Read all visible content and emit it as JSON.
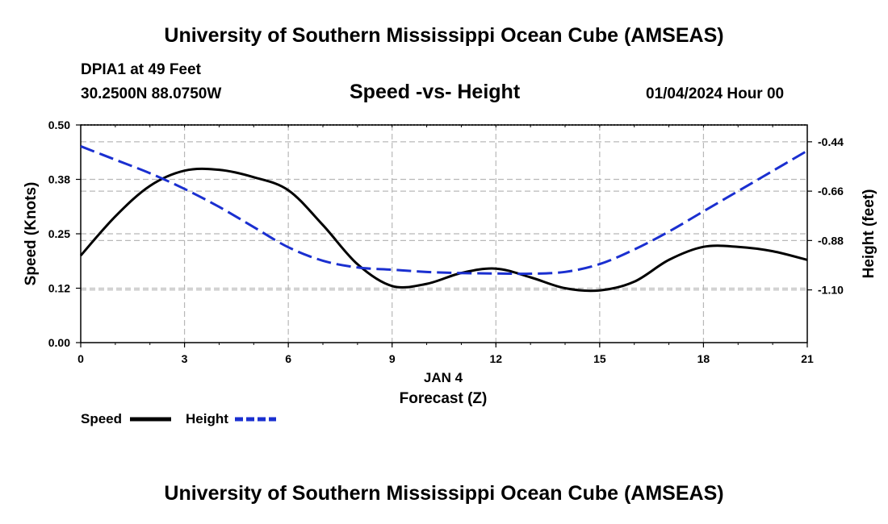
{
  "header": {
    "title": "University of Southern Mississippi Ocean Cube (AMSEAS)",
    "station": "DPIA1 at 49 Feet",
    "coords": "30.2500N  88.0750W",
    "datetime": "01/04/2024 Hour 00",
    "footer_title": "University of Southern Mississippi Ocean Cube (AMSEAS)"
  },
  "chart_data": {
    "type": "line",
    "title": "Speed -vs- Height",
    "xlabel": "Forecast (Z)",
    "xlabel_date": "JAN 4",
    "ylabel": "Speed (Knots)",
    "y2label": "Height (feet)",
    "xlim": [
      0,
      21
    ],
    "ylim": [
      0,
      0.5
    ],
    "y2lim": [
      -1.335,
      -0.365
    ],
    "x_ticks": [
      0,
      3,
      6,
      9,
      12,
      15,
      18,
      21
    ],
    "x_tick_labels": [
      "0",
      "3",
      "6",
      "9",
      "12",
      "15",
      "18",
      "21"
    ],
    "y_ticks": [
      0,
      0.125,
      0.25,
      0.375,
      0.5
    ],
    "y_tick_labels": [
      "0.00",
      "0.12",
      "0.25",
      "0.38",
      "0.50"
    ],
    "y2_ticks": [
      -1.1,
      -0.88,
      -0.66,
      -0.44
    ],
    "y2_tick_labels": [
      "-1.10",
      "-0.88",
      "-0.66",
      "-0.44"
    ],
    "grid": true,
    "legend_placement": "bottom-left",
    "series": [
      {
        "name": "Speed",
        "axis": "left",
        "color": "#000000",
        "style": "solid",
        "x": [
          0,
          1,
          2,
          3,
          4,
          5,
          6,
          7,
          8,
          9,
          10,
          11,
          12,
          13,
          14,
          15,
          16,
          17,
          18,
          19,
          20,
          21
        ],
        "values": [
          0.2,
          0.29,
          0.36,
          0.395,
          0.397,
          0.38,
          0.35,
          0.27,
          0.18,
          0.13,
          0.135,
          0.16,
          0.17,
          0.15,
          0.125,
          0.12,
          0.14,
          0.19,
          0.22,
          0.22,
          0.21,
          0.19
        ]
      },
      {
        "name": "Height",
        "axis": "right",
        "color": "#1a2fd0",
        "style": "dashed",
        "x": [
          0,
          1,
          2,
          3,
          4,
          5,
          6,
          7,
          8,
          9,
          10,
          11,
          12,
          13,
          14,
          15,
          16,
          17,
          18,
          19,
          20,
          21
        ],
        "values": [
          -0.46,
          -0.52,
          -0.58,
          -0.65,
          -0.73,
          -0.82,
          -0.91,
          -0.97,
          -1.0,
          -1.01,
          -1.02,
          -1.025,
          -1.027,
          -1.028,
          -1.02,
          -0.985,
          -0.92,
          -0.84,
          -0.75,
          -0.66,
          -0.57,
          -0.48
        ]
      }
    ]
  }
}
